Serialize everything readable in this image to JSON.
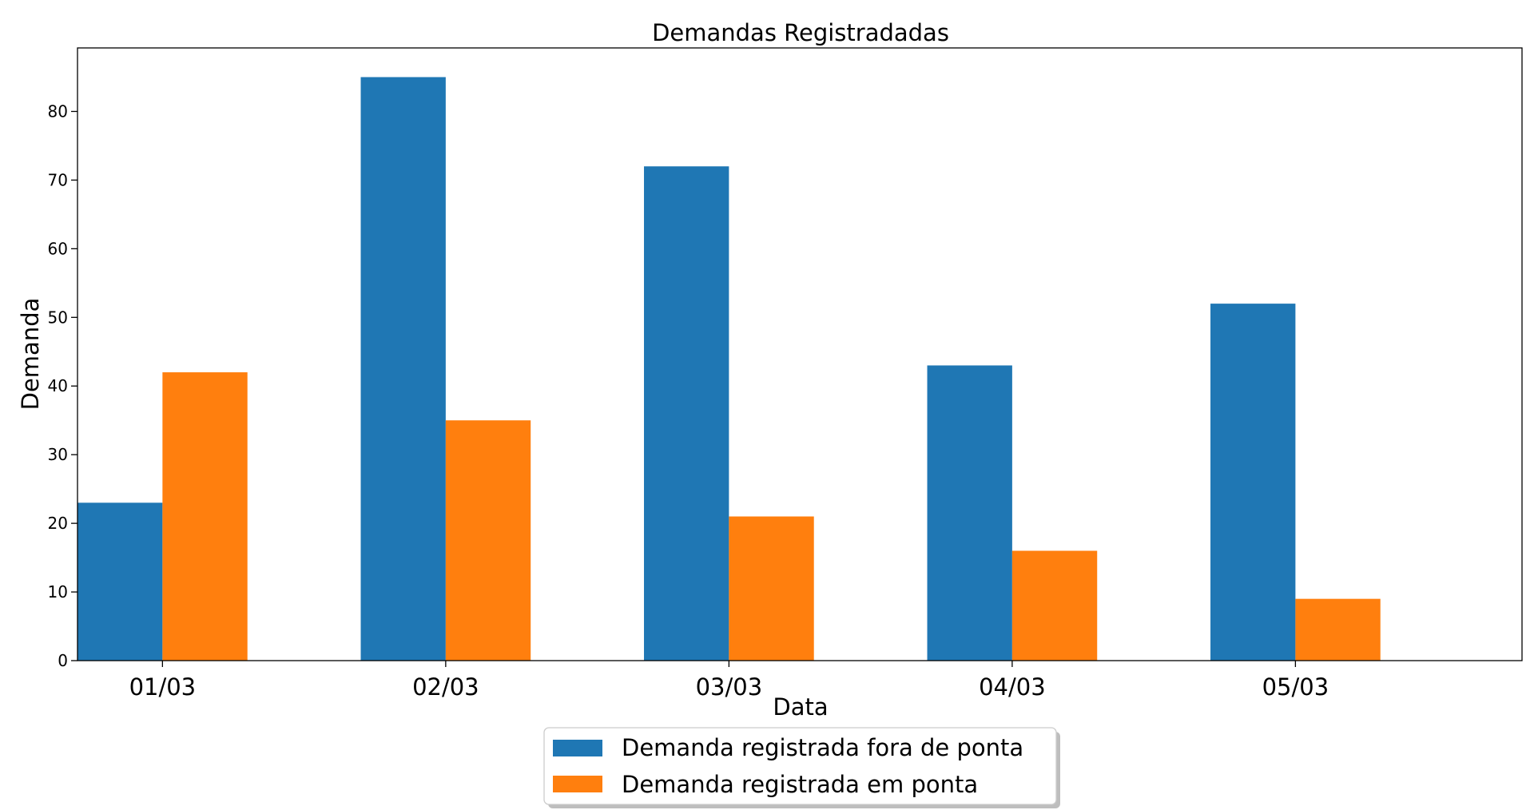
{
  "chart_data": {
    "type": "bar",
    "title": "Demandas Registradadas",
    "xlabel": "Data",
    "ylabel": "Demanda",
    "categories": [
      "01/03",
      "02/03",
      "03/03",
      "04/03",
      "05/03"
    ],
    "series": [
      {
        "name": "Demanda registrada fora de ponta",
        "color": "#1f77b4",
        "values": [
          23,
          85,
          72,
          43,
          52
        ]
      },
      {
        "name": "Demanda registrada em ponta",
        "color": "#ff7f0e",
        "values": [
          42,
          35,
          21,
          16,
          9
        ]
      }
    ],
    "ylim": [
      0,
      89.25
    ],
    "yticks": [
      0,
      10,
      20,
      30,
      40,
      50,
      60,
      70,
      80
    ],
    "grid": false,
    "legend_position": "bottom-center"
  }
}
